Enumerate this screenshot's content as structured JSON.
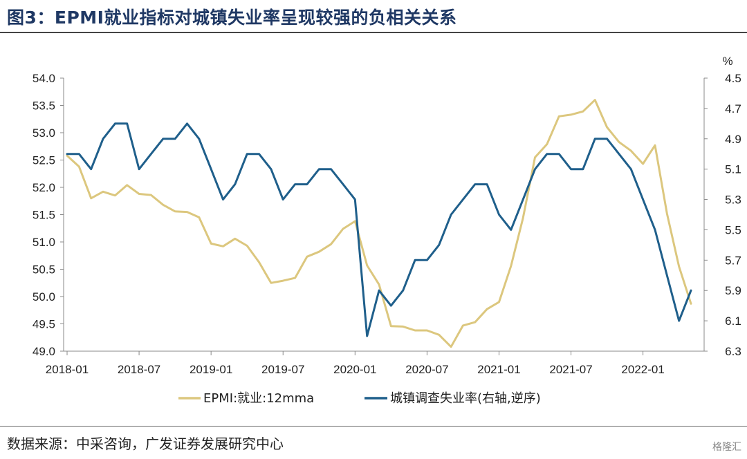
{
  "title": "图3：EPMI就业指标对城镇失业率呈现较强的负相关关系",
  "source": "数据来源：中采咨询，广发证券发展研究中心",
  "watermark": "格隆汇",
  "chart_data": {
    "type": "line",
    "x": [
      "2018-01",
      "2018-02",
      "2018-03",
      "2018-04",
      "2018-05",
      "2018-06",
      "2018-07",
      "2018-08",
      "2018-09",
      "2018-10",
      "2018-11",
      "2018-12",
      "2019-01",
      "2019-02",
      "2019-03",
      "2019-04",
      "2019-05",
      "2019-06",
      "2019-07",
      "2019-08",
      "2019-09",
      "2019-10",
      "2019-11",
      "2019-12",
      "2020-01",
      "2020-02",
      "2020-03",
      "2020-04",
      "2020-05",
      "2020-06",
      "2020-07",
      "2020-08",
      "2020-09",
      "2020-10",
      "2020-11",
      "2020-12",
      "2021-01",
      "2021-02",
      "2021-03",
      "2021-04",
      "2021-05",
      "2021-06",
      "2021-07",
      "2021-08",
      "2021-09",
      "2021-10",
      "2021-11",
      "2021-12",
      "2022-01",
      "2022-02",
      "2022-03",
      "2022-04",
      "2022-05"
    ],
    "xticks": [
      "2018-01",
      "2018-07",
      "2019-01",
      "2019-07",
      "2020-01",
      "2020-07",
      "2021-01",
      "2021-07",
      "2022-01"
    ],
    "y_left": {
      "ylim": [
        49.0,
        54.0
      ],
      "ticks": [
        "54.0",
        "53.5",
        "53.0",
        "52.5",
        "52.0",
        "51.5",
        "51.0",
        "50.5",
        "50.0",
        "49.5",
        "49.0"
      ]
    },
    "y_right": {
      "label": "%",
      "ylim": [
        4.5,
        6.3
      ],
      "inverted": true,
      "ticks": [
        "4.5",
        "4.7",
        "4.9",
        "5.1",
        "5.3",
        "5.5",
        "5.7",
        "5.9",
        "6.1",
        "6.3"
      ]
    },
    "series": [
      {
        "name": "EPMI:就业:12mma",
        "axis": "left",
        "color": "#dcc77e",
        "values": [
          52.58,
          52.38,
          51.8,
          51.92,
          51.85,
          52.04,
          51.88,
          51.86,
          51.68,
          51.56,
          51.55,
          51.45,
          50.97,
          50.92,
          51.06,
          50.93,
          50.63,
          50.25,
          50.29,
          50.34,
          50.73,
          50.82,
          50.96,
          51.24,
          51.38,
          50.57,
          50.22,
          49.46,
          49.45,
          49.38,
          49.38,
          49.3,
          49.08,
          49.47,
          49.53,
          49.77,
          49.9,
          50.56,
          51.44,
          52.55,
          52.79,
          53.3,
          53.33,
          53.39,
          53.6,
          53.1,
          52.83,
          52.67,
          52.43,
          52.77,
          51.52,
          50.55,
          49.87
        ]
      },
      {
        "name": "城镇调查失业率(右轴,逆序)",
        "axis": "right",
        "color": "#1f5f8b",
        "values": [
          5.0,
          5.0,
          5.1,
          4.9,
          4.8,
          4.8,
          5.1,
          5.0,
          4.9,
          4.9,
          4.8,
          4.9,
          5.1,
          5.3,
          5.2,
          5.0,
          5.0,
          5.1,
          5.3,
          5.2,
          5.2,
          5.1,
          5.1,
          5.2,
          5.3,
          6.2,
          5.9,
          6.0,
          5.9,
          5.7,
          5.7,
          5.6,
          5.4,
          5.3,
          5.2,
          5.2,
          5.4,
          5.5,
          5.3,
          5.1,
          5.0,
          5.0,
          5.1,
          5.1,
          4.9,
          4.9,
          5.0,
          5.1,
          5.3,
          5.5,
          5.8,
          6.1,
          5.9
        ]
      }
    ]
  }
}
